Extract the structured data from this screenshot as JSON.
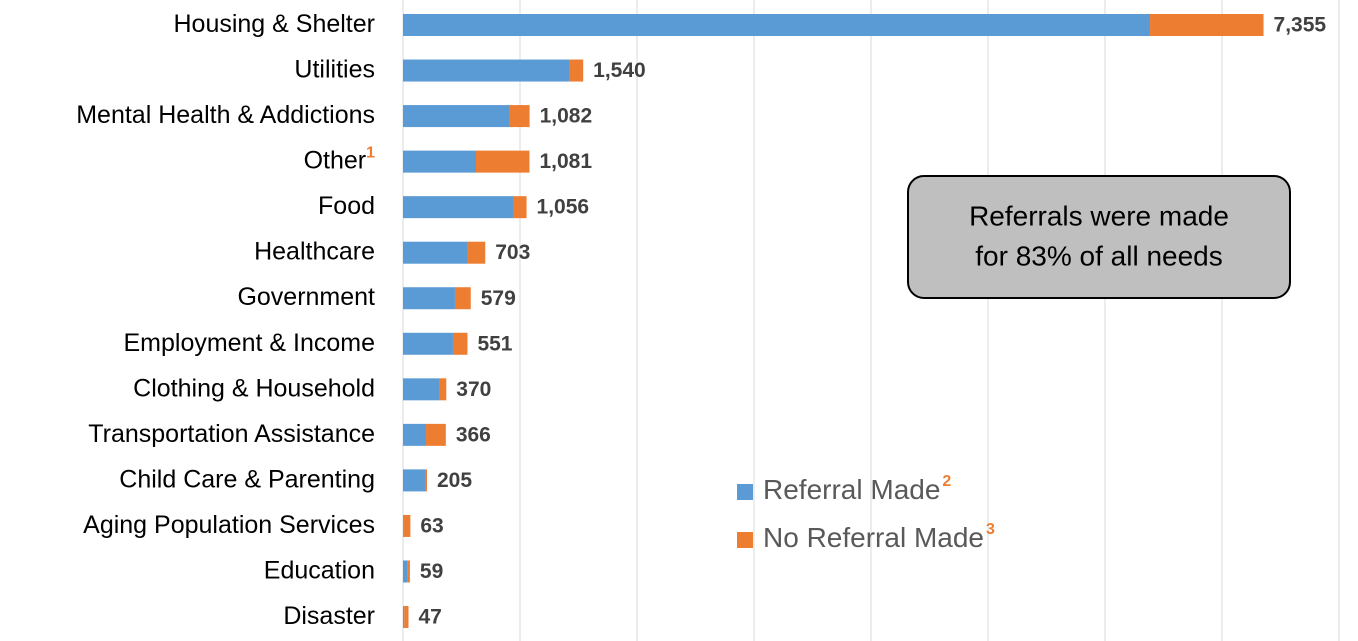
{
  "chart_data": {
    "type": "stacked-bar-horizontal",
    "categories": [
      "Housing & Shelter",
      "Utilities",
      "Mental Health & Addictions",
      "Other",
      "Food",
      "Healthcare",
      "Government",
      "Employment & Income",
      "Clothing & Household",
      "Transportation Assistance",
      "Child Care & Parenting",
      "Aging Population Services",
      "Education",
      "Disaster"
    ],
    "category_notes": [
      null,
      null,
      null,
      "1",
      null,
      null,
      null,
      null,
      null,
      null,
      null,
      null,
      null,
      null
    ],
    "series": [
      {
        "name": "Referral Made",
        "note": "2",
        "color": "#5b9bd5",
        "values": [
          6385,
          1419,
          906,
          624,
          940,
          547,
          444,
          427,
          308,
          197,
          188,
          5,
          40,
          10
        ]
      },
      {
        "name": "No Referral Made",
        "note": "3",
        "color": "#ed7d31",
        "values": [
          970,
          121,
          176,
          457,
          116,
          156,
          135,
          124,
          62,
          169,
          17,
          58,
          19,
          37
        ]
      }
    ],
    "value_labels": [
      "7,355",
      "1,540",
      "1,082",
      "1,081",
      "1,056",
      "703",
      "579",
      "551",
      "370",
      "366",
      "205",
      "63",
      "59",
      "47"
    ],
    "xlim": [
      0,
      8000
    ],
    "xticks": [
      0,
      1000,
      2000,
      3000,
      4000,
      5000,
      6000,
      7000,
      8000
    ],
    "grid": true,
    "annotation": [
      "Referrals were made",
      "for 83% of all needs"
    ]
  }
}
